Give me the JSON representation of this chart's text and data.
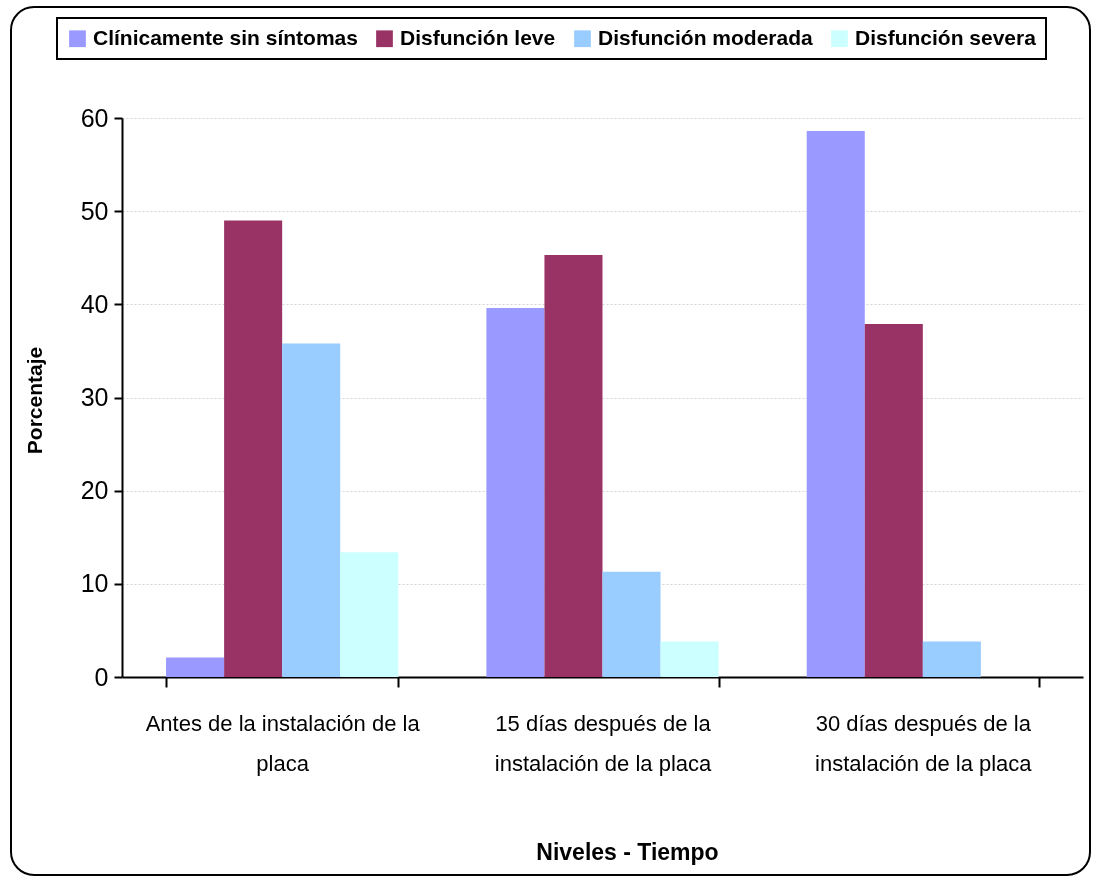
{
  "chart_data": {
    "type": "bar",
    "categories": [
      "Antes de la instalación de la placa",
      "15 días después de la instalación de la placa",
      "30 días después de la instalación de la placa"
    ],
    "series": [
      {
        "name": "Clínicamente sin síntomas",
        "color": "#9999ff",
        "values": [
          2.1,
          39.6,
          58.6
        ]
      },
      {
        "name": "Disfunción leve",
        "color": "#993366",
        "values": [
          49.0,
          45.3,
          37.9
        ]
      },
      {
        "name": "Disfunción moderada",
        "color": "#99ccff",
        "values": [
          35.8,
          11.3,
          3.8
        ]
      },
      {
        "name": "Disfunción severa",
        "color": "#ccffff",
        "values": [
          13.4,
          3.8,
          null
        ]
      }
    ],
    "xlabel": "Niveles - Tiempo",
    "ylabel": "Porcentaje",
    "ylim": [
      0,
      60
    ],
    "yticks": [
      0,
      10,
      20,
      30,
      40,
      50,
      60
    ],
    "grid": "y",
    "legend": "top"
  }
}
